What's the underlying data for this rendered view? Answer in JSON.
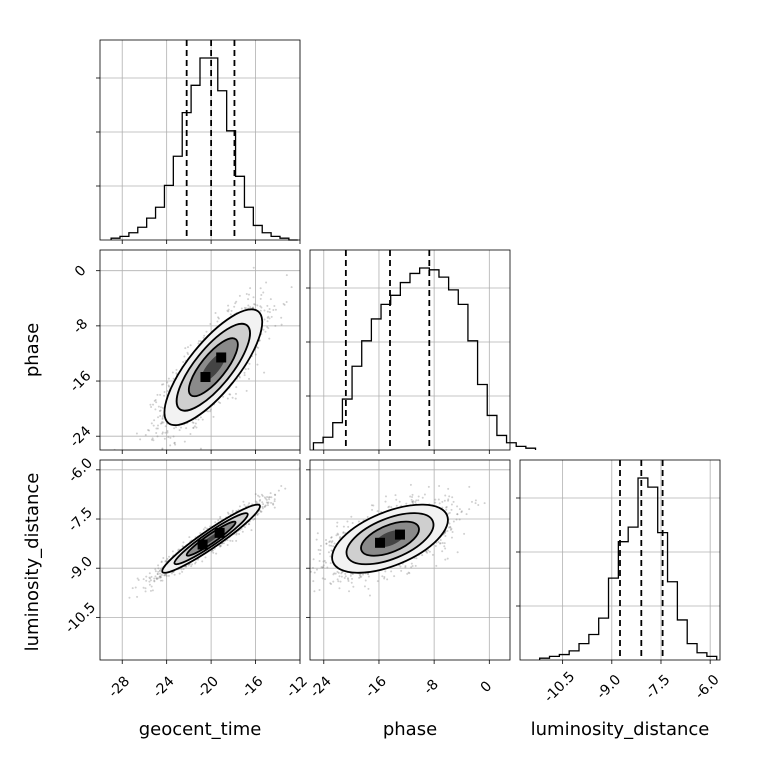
{
  "chart_data": {
    "type": "corner",
    "parameters": [
      "geocent_time",
      "phase",
      "luminosity_distance"
    ],
    "grid": true,
    "ranges": {
      "geocent_time": [
        -30,
        -12
      ],
      "phase": [
        -26,
        3
      ],
      "luminosity_distance": [
        -11.8,
        -5.7
      ]
    },
    "ticks": {
      "geocent_time": [
        "-28",
        "-24",
        "-20",
        "-16",
        "-12"
      ],
      "phase": [
        "-24",
        "-16",
        "-8",
        "0"
      ],
      "luminosity_distance": [
        "-10.5",
        "-9.0",
        "-7.5",
        "-6.0"
      ]
    },
    "quantiles": {
      "geocent_time": [
        -22.2,
        -20.0,
        -17.9
      ],
      "phase": [
        -20.8,
        -14.4,
        -8.7
      ],
      "luminosity_distance": [
        -8.75,
        -8.1,
        -7.45
      ]
    },
    "marginals": {
      "geocent_time": {
        "edges_start": -29.0,
        "bin_width": 0.8,
        "counts": [
          1,
          2,
          4,
          7,
          12,
          18,
          30,
          46,
          70,
          85,
          100,
          100,
          82,
          60,
          35,
          18,
          8,
          4,
          2,
          1,
          0
        ]
      },
      "phase": {
        "edges_start": -25.5,
        "bin_width": 1.4,
        "counts": [
          4,
          7,
          15,
          28,
          46,
          60,
          72,
          80,
          85,
          92,
          97,
          100,
          99,
          95,
          88,
          80,
          60,
          36,
          19,
          8,
          4,
          2,
          1
        ]
      },
      "luminosity_distance": {
        "edges_start": -11.2,
        "bin_width": 0.3,
        "counts": [
          1,
          2,
          3,
          5,
          9,
          14,
          23,
          45,
          65,
          73,
          100,
          95,
          70,
          43,
          22,
          9,
          4,
          2
        ]
      }
    },
    "joint": [
      {
        "x": "geocent_time",
        "y": "phase",
        "center": [
          -19.8,
          -14.0
        ],
        "sigma": [
          2.2,
          4.2
        ],
        "corr": 0.78
      },
      {
        "x": "geocent_time",
        "y": "luminosity_distance",
        "center": [
          -20.0,
          -8.1
        ],
        "sigma": [
          2.2,
          0.52
        ],
        "corr": 0.95
      },
      {
        "x": "phase",
        "y": "luminosity_distance",
        "center": [
          -14.4,
          -8.1
        ],
        "sigma": [
          4.2,
          0.52
        ],
        "corr": 0.55
      }
    ],
    "contour_levels": [
      0.5,
      1.0,
      1.5,
      2.0
    ]
  }
}
